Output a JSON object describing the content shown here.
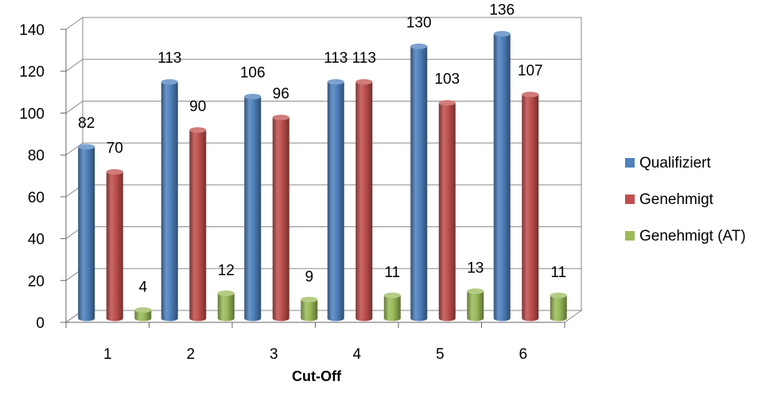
{
  "chart_data": {
    "type": "bar",
    "style": "3d-cylinder",
    "title": "",
    "xlabel": "Cut-Off",
    "ylabel": "",
    "categories": [
      "1",
      "2",
      "3",
      "4",
      "5",
      "6"
    ],
    "ylim": [
      0,
      140
    ],
    "yticks": [
      "0",
      "20",
      "40",
      "60",
      "80",
      "100",
      "120",
      "140"
    ],
    "grid": true,
    "legend_position": "right",
    "series": [
      {
        "name": "Qualifiziert",
        "values": [
          82,
          113,
          106,
          113,
          130,
          136
        ],
        "color": "#4F81BD"
      },
      {
        "name": "Genehmigt",
        "values": [
          70,
          90,
          96,
          113,
          103,
          107
        ],
        "color": "#C0504D"
      },
      {
        "name": "Genehmigt (AT)",
        "values": [
          4,
          12,
          9,
          11,
          13,
          11
        ],
        "color": "#9BBB59"
      }
    ]
  }
}
